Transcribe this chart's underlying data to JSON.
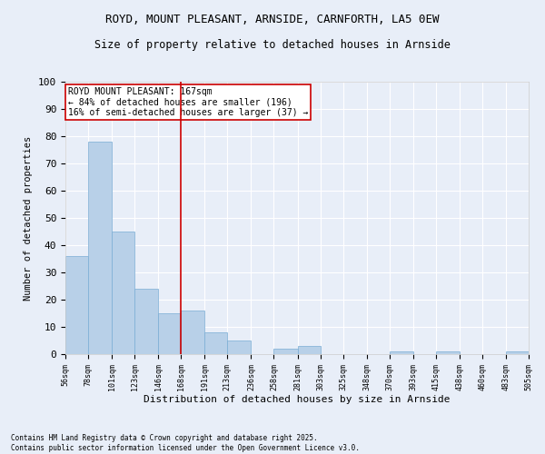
{
  "title1": "ROYD, MOUNT PLEASANT, ARNSIDE, CARNFORTH, LA5 0EW",
  "title2": "Size of property relative to detached houses in Arnside",
  "xlabel": "Distribution of detached houses by size in Arnside",
  "ylabel": "Number of detached properties",
  "bins": [
    56,
    78,
    101,
    123,
    146,
    168,
    191,
    213,
    236,
    258,
    281,
    303,
    325,
    348,
    370,
    393,
    415,
    438,
    460,
    483,
    505
  ],
  "counts": [
    36,
    78,
    45,
    24,
    15,
    16,
    8,
    5,
    0,
    2,
    3,
    0,
    0,
    0,
    1,
    0,
    1,
    0,
    0,
    1
  ],
  "bar_color": "#b8d0e8",
  "bar_edge_color": "#7aadd4",
  "bg_color": "#e8eef8",
  "grid_color": "#ffffff",
  "ref_line_x": 168,
  "ref_line_color": "#cc0000",
  "annotation_text": "ROYD MOUNT PLEASANT: 167sqm\n← 84% of detached houses are smaller (196)\n16% of semi-detached houses are larger (37) →",
  "annotation_box_color": "#ffffff",
  "annotation_box_edge": "#cc0000",
  "ylim": [
    0,
    100
  ],
  "yticks": [
    0,
    10,
    20,
    30,
    40,
    50,
    60,
    70,
    80,
    90,
    100
  ],
  "footnote": "Contains HM Land Registry data © Crown copyright and database right 2025.\nContains public sector information licensed under the Open Government Licence v3.0.",
  "tick_labels": [
    "56sqm",
    "78sqm",
    "101sqm",
    "123sqm",
    "146sqm",
    "168sqm",
    "191sqm",
    "213sqm",
    "236sqm",
    "258sqm",
    "281sqm",
    "303sqm",
    "325sqm",
    "348sqm",
    "370sqm",
    "393sqm",
    "415sqm",
    "438sqm",
    "460sqm",
    "483sqm",
    "505sqm"
  ]
}
